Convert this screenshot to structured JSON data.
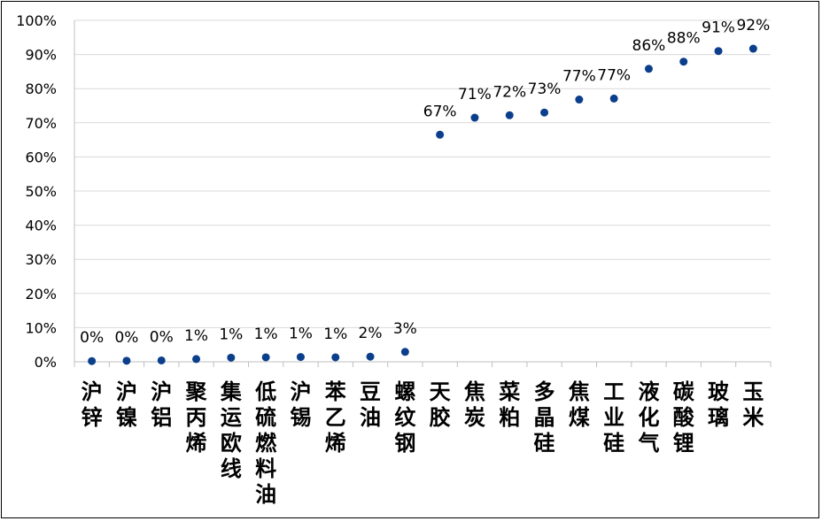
{
  "chart_data": {
    "type": "scatter",
    "title": "",
    "xlabel": "",
    "ylabel": "",
    "ylim": [
      0,
      100
    ],
    "y_ticks": [
      "0%",
      "10%",
      "20%",
      "30%",
      "40%",
      "50%",
      "60%",
      "70%",
      "80%",
      "90%",
      "100%"
    ],
    "grid": true,
    "legend": "none",
    "marker_color": "#0B3F8C",
    "categories": [
      "沪锌",
      "沪镍",
      "沪铝",
      "聚丙烯",
      "集运欧线",
      "低硫燃料油",
      "沪锡",
      "苯乙烯",
      "豆油",
      "螺纹钢",
      "天胶",
      "焦炭",
      "菜粕",
      "多晶硅",
      "焦煤",
      "工业硅",
      "液化气",
      "碳酸锂",
      "玻璃",
      "玉米"
    ],
    "values": [
      0.2,
      0.3,
      0.4,
      0.8,
      1.2,
      1.3,
      1.4,
      1.3,
      1.5,
      2.9,
      66.5,
      71.5,
      72.2,
      73.0,
      76.8,
      77.1,
      85.8,
      87.9,
      91.0,
      91.7
    ],
    "data_labels": [
      "0%",
      "0%",
      "0%",
      "1%",
      "1%",
      "1%",
      "1%",
      "1%",
      "2%",
      "3%",
      "67%",
      "71%",
      "72%",
      "73%",
      "77%",
      "77%",
      "86%",
      "88%",
      "91%",
      "92%"
    ]
  }
}
